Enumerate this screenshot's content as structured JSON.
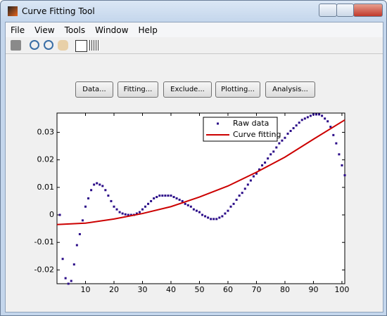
{
  "window": {
    "title": "Curve Fitting Tool"
  },
  "menu": [
    "File",
    "View",
    "Tools",
    "Window",
    "Help"
  ],
  "buttons": [
    "Data...",
    "Fitting...",
    "Exclude...",
    "Plotting...",
    "Analysis..."
  ],
  "chart_data": {
    "type": "scatter",
    "xlim": [
      0,
      101
    ],
    "ylim": [
      -0.025,
      0.037
    ],
    "xticks": [
      10,
      20,
      30,
      40,
      50,
      60,
      70,
      80,
      90,
      100
    ],
    "yticks": [
      -0.02,
      -0.01,
      0,
      0.01,
      0.02,
      0.03
    ],
    "legend": "upper right",
    "series": [
      {
        "name": "Raw data",
        "color": "#2b0c88",
        "marker": "point",
        "x": [
          1,
          2,
          3,
          4,
          5,
          6,
          7,
          8,
          9,
          10,
          11,
          12,
          13,
          14,
          15,
          16,
          17,
          18,
          19,
          20,
          21,
          22,
          23,
          24,
          25,
          26,
          27,
          28,
          29,
          30,
          31,
          32,
          33,
          34,
          35,
          36,
          37,
          38,
          39,
          40,
          41,
          42,
          43,
          44,
          45,
          46,
          47,
          48,
          49,
          50,
          51,
          52,
          53,
          54,
          55,
          56,
          57,
          58,
          59,
          60,
          61,
          62,
          63,
          64,
          65,
          66,
          67,
          68,
          69,
          70,
          71,
          72,
          73,
          74,
          75,
          76,
          77,
          78,
          79,
          80,
          81,
          82,
          83,
          84,
          85,
          86,
          87,
          88,
          89,
          90,
          91,
          92,
          93,
          94,
          95,
          96,
          97,
          98,
          99,
          100,
          101
        ],
        "values": [
          0,
          -0.016,
          -0.023,
          -0.025,
          -0.024,
          -0.018,
          -0.011,
          -0.007,
          -0.002,
          0.003,
          0.006,
          0.009,
          0.011,
          0.0115,
          0.011,
          0.0105,
          0.009,
          0.007,
          0.005,
          0.003,
          0.002,
          0.001,
          0.0005,
          0.0002,
          0,
          0,
          0,
          0.0005,
          0.001,
          0.002,
          0.003,
          0.004,
          0.005,
          0.006,
          0.0065,
          0.007,
          0.007,
          0.007,
          0.007,
          0.007,
          0.0065,
          0.006,
          0.0055,
          0.005,
          0.004,
          0.0035,
          0.003,
          0.002,
          0.0015,
          0.001,
          0,
          -0.0005,
          -0.001,
          -0.0015,
          -0.0015,
          -0.0015,
          -0.001,
          -0.0005,
          0.0005,
          0.0015,
          0.003,
          0.004,
          0.0055,
          0.007,
          0.008,
          0.0095,
          0.011,
          0.0125,
          0.014,
          0.015,
          0.0165,
          0.018,
          0.019,
          0.0205,
          0.022,
          0.023,
          0.0245,
          0.026,
          0.027,
          0.028,
          0.0295,
          0.0305,
          0.0315,
          0.0325,
          0.0335,
          0.0345,
          0.035,
          0.0355,
          0.036,
          0.0365,
          0.0365,
          0.0365,
          0.036,
          0.035,
          0.034,
          0.032,
          0.029,
          0.026,
          0.022,
          0.018,
          0.0144
        ]
      },
      {
        "name": "Curve fitting",
        "color": "#cc0000",
        "marker": "line",
        "x": [
          0,
          10,
          20,
          30,
          40,
          50,
          60,
          70,
          80,
          90,
          101
        ],
        "values": [
          -0.0035,
          -0.003,
          -0.0015,
          0.0005,
          0.003,
          0.0065,
          0.0105,
          0.0155,
          0.021,
          0.0275,
          0.0345
        ]
      }
    ]
  }
}
